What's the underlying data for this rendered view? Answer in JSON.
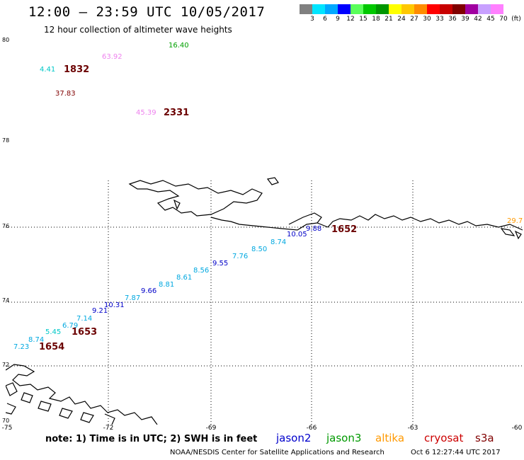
{
  "header": {
    "title": "12:00 – 23:59 UTC 10/05/2017",
    "subtitle": "12 hour collection of altimeter wave heights"
  },
  "colorbar": {
    "colors": [
      "#808080",
      "#00e5ff",
      "#00a8ff",
      "#0000ff",
      "#5aff5a",
      "#00c800",
      "#009600",
      "#ffff00",
      "#ffc800",
      "#ff8c00",
      "#ff0000",
      "#c80000",
      "#800000",
      "#a000a0",
      "#c8a0ff",
      "#ff80ff",
      "#000000"
    ],
    "labels": [
      "3",
      "6",
      "9",
      "12",
      "15",
      "18",
      "21",
      "24",
      "27",
      "30",
      "33",
      "36",
      "39",
      "42",
      "45",
      "70",
      "(ft)"
    ]
  },
  "axes": {
    "lat_labels": [
      "80",
      "78",
      "76",
      "74",
      "72",
      "70"
    ],
    "lon_labels": [
      "-75",
      "-72",
      "-69",
      "-66",
      "-63",
      "-60"
    ]
  },
  "observations": [
    {
      "text": "16.40",
      "color": "#00a000"
    },
    {
      "text": "63.92",
      "color": "#ee82ee"
    },
    {
      "text": "4.41",
      "color": "#00c8c8"
    },
    {
      "text": "37.83",
      "color": "#800000"
    },
    {
      "text": "45.39",
      "color": "#ee82ee"
    },
    {
      "text": "29.7",
      "color": "#ff9900"
    },
    {
      "text": "9.88",
      "color": "#0000c8"
    },
    {
      "text": "10.05",
      "color": "#0000c8"
    },
    {
      "text": "8.74",
      "color": "#00a8e0"
    },
    {
      "text": "8.50",
      "color": "#00a8e0"
    },
    {
      "text": "7.76",
      "color": "#00a8e0"
    },
    {
      "text": "9.55",
      "color": "#0000c8"
    },
    {
      "text": "8.56",
      "color": "#00a8e0"
    },
    {
      "text": "8.61",
      "color": "#00a8e0"
    },
    {
      "text": "8.81",
      "color": "#00a8e0"
    },
    {
      "text": "9.66",
      "color": "#0000c8"
    },
    {
      "text": "7.87",
      "color": "#00a8e0"
    },
    {
      "text": "10.31",
      "color": "#0000c8"
    },
    {
      "text": "9.21",
      "color": "#0000c8"
    },
    {
      "text": "7.14",
      "color": "#00a8e0"
    },
    {
      "text": "6.79",
      "color": "#00a8e0"
    },
    {
      "text": "5.45",
      "color": "#00c8c8"
    },
    {
      "text": "8.74",
      "color": "#00a8e0"
    },
    {
      "text": "7.23",
      "color": "#00a8e0"
    }
  ],
  "pass_times": [
    "1832",
    "2331",
    "1652",
    "1653",
    "1654"
  ],
  "footer": {
    "note": "note: 1) Time is in UTC; 2) SWH is in feet",
    "satellites": [
      {
        "name": "jason2",
        "color": "#0000cc"
      },
      {
        "name": "jason3",
        "color": "#009900"
      },
      {
        "name": "altika",
        "color": "#ff9900"
      },
      {
        "name": "cryosat",
        "color": "#cc0000"
      },
      {
        "name": "s3a",
        "color": "#800000"
      }
    ],
    "credit": "NOAA/NESDIS Center for Satellite Applications and Research",
    "timestamp": "Oct  6 12:27:44 UTC 2017"
  }
}
